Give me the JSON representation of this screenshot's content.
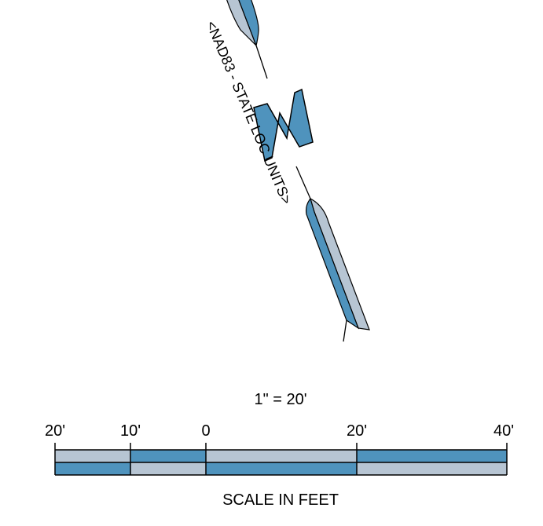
{
  "north_arrow": {
    "letter": "N",
    "datum_label": "<NAD83 - STATE LOC UNITS>"
  },
  "scale_bar": {
    "ratio_label": "1\" = 20'",
    "tick_labels": [
      "20'",
      "10'",
      "0",
      "20'",
      "40'"
    ],
    "caption": "SCALE IN FEET"
  },
  "colors": {
    "dark_blue": "#4f93bd",
    "light_gray_blue": "#b7c5d3",
    "stroke": "#000000",
    "background": "#ffffff"
  }
}
